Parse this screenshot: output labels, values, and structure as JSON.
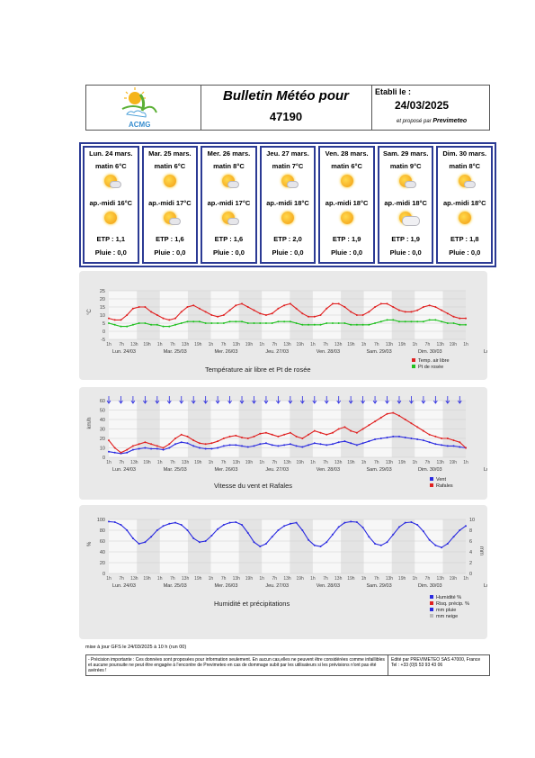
{
  "header": {
    "logo_text": "ACMG",
    "title": "Bulletin Météo pour",
    "code": "47190",
    "etabli_label": "Etabli le :",
    "date": "24/03/2025",
    "propose_label": "et proposé par",
    "provider": "Previmeteo"
  },
  "days": [
    {
      "title": "Lun. 24 mars.",
      "matin": "matin 6°C",
      "apmidi": "ap.-midi 16°C",
      "etp": "ETP : 1,1",
      "pluie": "Pluie : 0,0",
      "morning_icon": "sun-cloud-icon",
      "afternoon_icon": "sun-icon"
    },
    {
      "title": "Mar. 25 mars.",
      "matin": "matin 6°C",
      "apmidi": "ap.-midi 17°C",
      "etp": "ETP : 1,6",
      "pluie": "Pluie : 0,0",
      "morning_icon": "sun-icon",
      "afternoon_icon": "sun-cloud-icon"
    },
    {
      "title": "Mer. 26 mars.",
      "matin": "matin 8°C",
      "apmidi": "ap.-midi 17°C",
      "etp": "ETP : 1,6",
      "pluie": "Pluie : 0,0",
      "morning_icon": "sun-cloud-icon",
      "afternoon_icon": "sun-cloud-icon"
    },
    {
      "title": "Jeu. 27 mars.",
      "matin": "matin 7°C",
      "apmidi": "ap.-midi 18°C",
      "etp": "ETP : 2,0",
      "pluie": "Pluie : 0,0",
      "morning_icon": "sun-cloud-icon",
      "afternoon_icon": "sun-icon"
    },
    {
      "title": "Ven. 28 mars.",
      "matin": "matin 6°C",
      "apmidi": "ap.-midi 18°C",
      "etp": "ETP : 1,9",
      "pluie": "Pluie : 0,0",
      "morning_icon": "sun-icon",
      "afternoon_icon": "sun-icon"
    },
    {
      "title": "Sam. 29 mars.",
      "matin": "matin 9°C",
      "apmidi": "ap.-midi 18°C",
      "etp": "ETP : 1,9",
      "pluie": "Pluie : 0,0",
      "morning_icon": "sun-cloud-icon",
      "afternoon_icon": "cloud-sun-icon"
    },
    {
      "title": "Dim. 30 mars.",
      "matin": "matin 8°C",
      "apmidi": "ap.-midi 18°C",
      "etp": "ETP : 1,8",
      "pluie": "Pluie : 0,0",
      "morning_icon": "sun-cloud-icon",
      "afternoon_icon": "sun-icon"
    }
  ],
  "colors": {
    "frame": "#2b3a94",
    "red": "#e02020",
    "green": "#1fc01f",
    "blue": "#2a2ae0",
    "panel": "#e9e9e9"
  },
  "chart_data": [
    {
      "type": "line",
      "title": "Température air libre et Pt de rosée",
      "ylabel": "°C",
      "ylim": [
        -5,
        25
      ],
      "yticks": [
        "25",
        "20",
        "15",
        "10",
        "5",
        "0",
        "-5"
      ],
      "x_hour_labels": [
        "1h",
        "7h",
        "13h",
        "19h"
      ],
      "day_labels": [
        "Lun. 24/03",
        "Mar. 25/03",
        "Mer. 26/03",
        "Jeu. 27/03",
        "Ven. 28/03",
        "Sam. 29/03",
        "Dim. 30/03"
      ],
      "end_label": "Lu",
      "series": [
        {
          "name": "Temp. air libre",
          "color": "#e02020",
          "values": [
            8,
            7,
            7,
            10,
            14,
            15,
            15,
            12,
            10,
            8,
            7,
            8,
            12,
            15,
            16,
            14,
            12,
            10,
            9,
            10,
            13,
            16,
            17,
            15,
            13,
            11,
            10,
            11,
            14,
            16,
            17,
            14,
            11,
            9,
            9,
            10,
            14,
            17,
            17,
            15,
            12,
            10,
            10,
            12,
            15,
            17,
            17,
            15,
            13,
            12,
            12,
            13,
            15,
            16,
            15,
            13,
            11,
            9,
            8,
            8
          ]
        },
        {
          "name": "Pt de rosée",
          "color": "#1fc01f",
          "values": [
            5,
            4,
            3,
            3,
            4,
            5,
            5,
            4,
            4,
            3,
            3,
            4,
            5,
            6,
            6,
            6,
            5,
            5,
            5,
            5,
            6,
            6,
            6,
            5,
            5,
            5,
            5,
            5,
            6,
            6,
            6,
            5,
            4,
            4,
            4,
            4,
            5,
            5,
            5,
            5,
            4,
            4,
            4,
            4,
            5,
            6,
            7,
            7,
            6,
            6,
            6,
            6,
            6,
            7,
            7,
            6,
            5,
            5,
            4,
            4
          ]
        }
      ]
    },
    {
      "type": "line",
      "title": "Vitesse du vent et Rafales",
      "ylabel": "km/h",
      "ylim": [
        0,
        60
      ],
      "yticks": [
        "60",
        "50",
        "40",
        "30",
        "20",
        "10",
        "0"
      ],
      "x_hour_labels": [
        "1h",
        "7h",
        "13h",
        "19h"
      ],
      "day_labels": [
        "Lun. 24/03",
        "Mar. 25/03",
        "Mer. 26/03",
        "Jeu. 27/03",
        "Ven. 28/03",
        "Sam. 29/03",
        "Dim. 30/03"
      ],
      "end_label": "Lu",
      "series": [
        {
          "name": "Vent",
          "color": "#2a2ae0",
          "values": [
            6,
            5,
            4,
            5,
            8,
            9,
            10,
            9,
            9,
            8,
            10,
            14,
            16,
            15,
            12,
            10,
            9,
            9,
            10,
            12,
            13,
            13,
            12,
            11,
            12,
            14,
            15,
            13,
            12,
            13,
            14,
            12,
            11,
            13,
            15,
            14,
            13,
            14,
            16,
            17,
            15,
            13,
            15,
            17,
            19,
            20,
            21,
            22,
            22,
            21,
            20,
            19,
            18,
            16,
            14,
            13,
            12,
            12,
            11,
            10
          ]
        },
        {
          "name": "Rafales",
          "color": "#e02020",
          "values": [
            18,
            10,
            5,
            8,
            12,
            14,
            16,
            14,
            12,
            10,
            14,
            20,
            24,
            22,
            18,
            15,
            14,
            15,
            17,
            20,
            22,
            23,
            21,
            20,
            22,
            25,
            26,
            24,
            22,
            24,
            26,
            22,
            20,
            24,
            28,
            26,
            24,
            26,
            30,
            32,
            28,
            26,
            30,
            34,
            38,
            42,
            46,
            47,
            44,
            40,
            36,
            32,
            28,
            24,
            22,
            20,
            20,
            18,
            16,
            10
          ]
        }
      ],
      "wind_direction": "north"
    },
    {
      "type": "line",
      "title": "Humidité et précipitations",
      "ylabel": "%",
      "y2label": "mm",
      "ylim": [
        0,
        100
      ],
      "y2lim": [
        0,
        10
      ],
      "yticks": [
        "100",
        "80",
        "60",
        "40",
        "20",
        "0"
      ],
      "y2ticks": [
        "10",
        "8",
        "6",
        "4",
        "2",
        "0"
      ],
      "x_hour_labels": [
        "1h",
        "7h",
        "13h",
        "19h"
      ],
      "day_labels": [
        "Lun. 24/03",
        "Mar. 25/03",
        "Mer. 26/03",
        "Jeu. 27/03",
        "Ven. 28/03",
        "Sam. 29/03",
        "Dim. 30/03"
      ],
      "end_label": "Lu",
      "series": [
        {
          "name": "Humidité %",
          "color": "#2a2ae0",
          "values": [
            96,
            95,
            90,
            80,
            65,
            55,
            58,
            68,
            80,
            88,
            92,
            94,
            90,
            80,
            65,
            58,
            60,
            70,
            82,
            90,
            94,
            95,
            90,
            75,
            58,
            50,
            55,
            68,
            80,
            88,
            92,
            94,
            80,
            62,
            52,
            50,
            58,
            72,
            86,
            94,
            96,
            95,
            85,
            68,
            55,
            52,
            58,
            72,
            86,
            94,
            95,
            90,
            78,
            62,
            52,
            48,
            55,
            68,
            80,
            88
          ]
        },
        {
          "name": "Risq. précip. %",
          "color": "#e02020",
          "values": []
        },
        {
          "name": "mm pluie",
          "color": "#2a2ae0",
          "values": []
        },
        {
          "name": "mm neige",
          "color": "#bbbbbb",
          "values": []
        }
      ]
    }
  ],
  "footer": {
    "mise_a_jour": "mise à jour GFS le 24/03/2025 à 10 h  (run 00)",
    "disclaimer": "- Précision importante : Ces données sont proposées pour information seulement. En aucun cas,elles ne peuvent être considérées comme infaillibles et aucune poursuite ne peut être engagée à l'encontre de Previmeteo en cas de dommage subit par les utilisateurs si les prévisions n'ont pas été avérées !",
    "editor": "Edité par PREVIMETEO SAS   47000, France",
    "tel": "Tel : +33 (0)5 53 93 43 06"
  }
}
